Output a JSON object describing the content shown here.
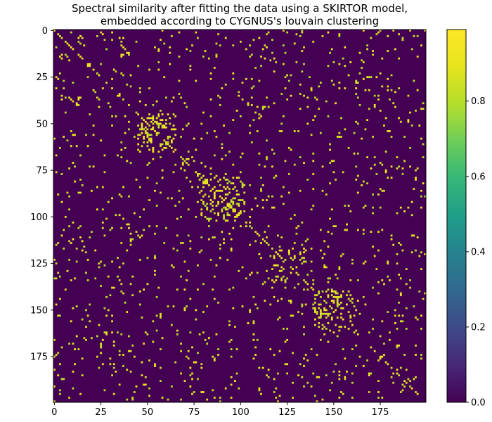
{
  "chart_data": {
    "type": "heatmap",
    "title_lines": [
      "Spectral similarity after fitting the data using a SKIRTOR model,",
      "embedded according to CYGNUS's louvain clustering"
    ],
    "xlabel": "",
    "ylabel": "",
    "size": 200,
    "x_ticks": [
      0,
      25,
      50,
      75,
      100,
      125,
      150,
      175
    ],
    "y_ticks": [
      0,
      25,
      50,
      75,
      100,
      125,
      150,
      175
    ],
    "colorbar": {
      "colormap": "viridis",
      "range": [
        0.0,
        0.99
      ],
      "ticks": [
        0.0,
        0.2,
        0.4,
        0.6,
        0.8
      ],
      "tick_labels": [
        "0.0",
        "0.2",
        "0.4",
        "0.6",
        "0.8"
      ]
    },
    "background_value": 0.0,
    "highlight_values": [
      0.8,
      0.84,
      0.88,
      0.92,
      0.96
    ],
    "clusters": [
      {
        "range": [
          45,
          65
        ],
        "density": 0.24
      },
      {
        "range": [
          78,
          102
        ],
        "density": 0.22
      },
      {
        "range": [
          118,
          135
        ],
        "density": 0.16
      },
      {
        "range": [
          140,
          162
        ],
        "density": 0.22
      }
    ],
    "background_density": 0.035,
    "seed": 7
  },
  "colors": {
    "viridis_low": "#440154",
    "viridis_high": "#fde725"
  }
}
